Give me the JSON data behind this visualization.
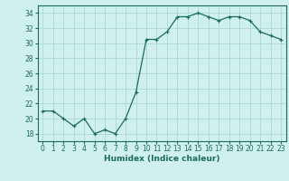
{
  "x": [
    0,
    1,
    2,
    3,
    4,
    5,
    6,
    7,
    8,
    9,
    10,
    11,
    12,
    13,
    14,
    15,
    16,
    17,
    18,
    19,
    20,
    21,
    22,
    23
  ],
  "y": [
    21.0,
    21.0,
    20.0,
    19.0,
    20.0,
    18.0,
    18.5,
    18.0,
    20.0,
    23.5,
    30.5,
    30.5,
    31.5,
    33.5,
    33.5,
    34.0,
    33.5,
    33.0,
    33.5,
    33.5,
    33.0,
    31.5,
    31.0,
    30.5
  ],
  "line_color": "#1a6b5a",
  "marker": "+",
  "marker_size": 3,
  "bg_color": "#cff0ec",
  "grid_color": "#aad8d3",
  "xlabel": "Humidex (Indice chaleur)",
  "ylim": [
    17,
    35
  ],
  "xlim": [
    -0.5,
    23.5
  ],
  "yticks": [
    18,
    20,
    22,
    24,
    26,
    28,
    30,
    32,
    34
  ],
  "xticks": [
    0,
    1,
    2,
    3,
    4,
    5,
    6,
    7,
    8,
    9,
    10,
    11,
    12,
    13,
    14,
    15,
    16,
    17,
    18,
    19,
    20,
    21,
    22,
    23
  ],
  "label_fontsize": 6.5,
  "tick_fontsize": 5.5
}
